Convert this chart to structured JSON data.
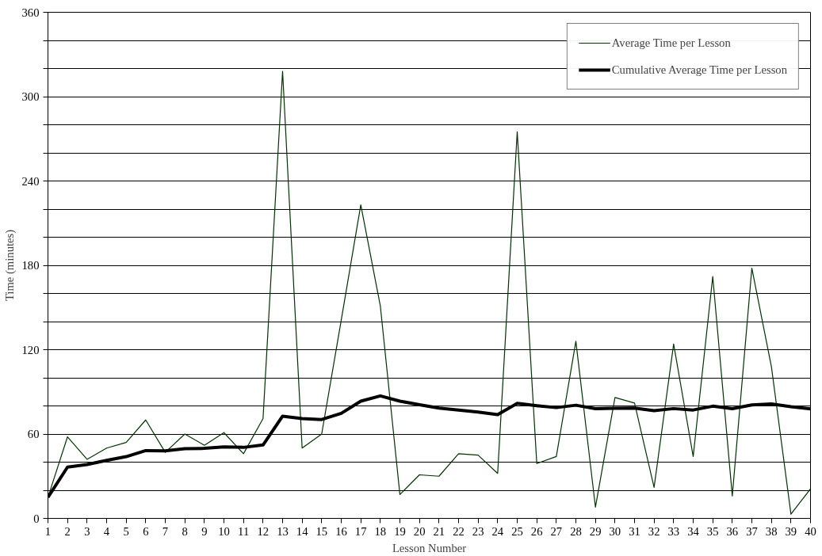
{
  "chart_data": {
    "type": "line",
    "xlabel": "Lesson Number",
    "ylabel": "Time (minutes)",
    "x": [
      1,
      2,
      3,
      4,
      5,
      6,
      7,
      8,
      9,
      10,
      11,
      12,
      13,
      14,
      15,
      16,
      17,
      18,
      19,
      20,
      21,
      22,
      23,
      24,
      25,
      26,
      27,
      28,
      29,
      30,
      31,
      32,
      33,
      34,
      35,
      36,
      37,
      38,
      39,
      40
    ],
    "xlim": [
      1,
      40
    ],
    "xticks": [
      1,
      2,
      3,
      4,
      5,
      6,
      7,
      8,
      9,
      10,
      11,
      12,
      13,
      14,
      15,
      16,
      17,
      18,
      19,
      20,
      21,
      22,
      23,
      24,
      25,
      26,
      27,
      28,
      29,
      30,
      31,
      32,
      33,
      34,
      35,
      36,
      37,
      38,
      39,
      40
    ],
    "ylim": [
      0,
      360
    ],
    "yticks": [
      0,
      {
        "value": 20,
        "label": null
      },
      {
        "value": 40,
        "label": null
      },
      60,
      {
        "value": 80,
        "label": null
      },
      {
        "value": 100,
        "label": null
      },
      120,
      {
        "value": 140,
        "label": null
      },
      {
        "value": 160,
        "label": null
      },
      180,
      {
        "value": 200,
        "label": null
      },
      {
        "value": 220,
        "label": null
      },
      240,
      {
        "value": 260,
        "label": null
      },
      {
        "value": 280,
        "label": null
      },
      300,
      {
        "value": 320,
        "label": null
      },
      {
        "value": 340,
        "label": null
      },
      360
    ],
    "grid": "y",
    "legend": "top right",
    "marker": "none",
    "line_style": "solid",
    "series": [
      {
        "name": "Average Time per Lesson",
        "color": "#003300",
        "values": [
          15,
          58,
          42,
          50,
          54,
          70,
          47,
          60,
          52,
          61,
          46,
          71,
          318,
          50,
          60,
          141,
          223,
          151,
          17,
          31,
          30,
          46,
          45,
          32,
          275,
          39,
          44,
          126,
          8,
          86,
          82,
          22,
          124,
          44,
          172,
          16,
          178,
          108,
          3,
          21
        ]
      },
      {
        "name": "Cumulative Average Time per Lesson",
        "color": "#000000",
        "values": [
          15,
          36.5,
          38.3,
          41.3,
          43.9,
          48.2,
          48.0,
          49.6,
          49.8,
          50.9,
          50.5,
          52.2,
          72.7,
          71.0,
          70.3,
          74.7,
          83.4,
          87.1,
          83.4,
          80.8,
          78.4,
          77.0,
          75.6,
          73.8,
          81.8,
          80.2,
          78.8,
          80.5,
          78.0,
          78.3,
          78.4,
          76.6,
          78.1,
          77.1,
          79.8,
          78.0,
          80.7,
          81.4,
          79.4,
          77.9
        ]
      }
    ]
  }
}
